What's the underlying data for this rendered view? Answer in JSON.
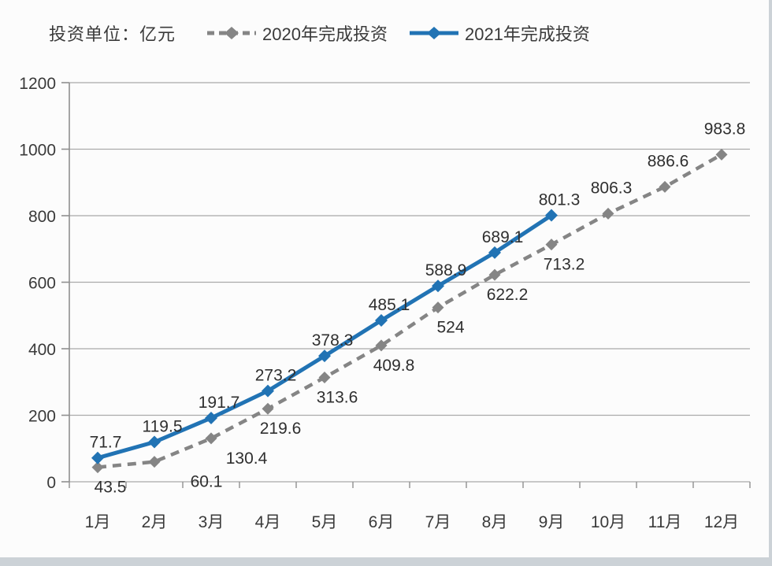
{
  "page": {
    "unit_label": "投资单位：亿元"
  },
  "chart_data": {
    "type": "line",
    "title": "",
    "unit_label": "投资单位：亿元",
    "xlabel": "",
    "ylabel": "亿元",
    "categories": [
      "1月",
      "2月",
      "3月",
      "4月",
      "5月",
      "6月",
      "7月",
      "8月",
      "9月",
      "10月",
      "11月",
      "12月"
    ],
    "series": [
      {
        "name": "2020年完成投资",
        "color": "#858585",
        "line_style": "dashed",
        "marker": "diamond",
        "values": [
          43.5,
          60.1,
          130.4,
          219.6,
          313.6,
          409.8,
          524,
          622.2,
          713.2,
          806.3,
          886.6,
          983.8
        ],
        "labels": [
          "43.5",
          "60.1",
          "130.4",
          "219.6",
          "313.6",
          "409.8",
          "524",
          "622.2",
          "713.2",
          "806.3",
          "886.6",
          "983.8"
        ],
        "label_side": [
          "below",
          "below",
          "below",
          "below",
          "below",
          "below",
          "below",
          "below",
          "below",
          "above",
          "above",
          "above"
        ]
      },
      {
        "name": "2021年完成投资",
        "color": "#2173b4",
        "line_style": "solid",
        "marker": "diamond",
        "values": [
          71.7,
          119.5,
          191.7,
          273.2,
          378.3,
          485.1,
          588.9,
          689.1,
          801.3,
          null,
          null,
          null
        ],
        "labels": [
          "71.7",
          "119.5",
          "191.7",
          "273.2",
          "378.3",
          "485.1",
          "588.9",
          "689.1",
          "801.3",
          "",
          "",
          ""
        ],
        "label_side": [
          "above",
          "above",
          "above",
          "above",
          "above",
          "above",
          "above",
          "above",
          "above",
          "above",
          "above",
          "above"
        ]
      }
    ],
    "ylim": [
      0,
      1200
    ],
    "yticks": [
      0,
      200,
      400,
      600,
      800,
      1000,
      1200
    ],
    "grid": "horizontal",
    "legend_position": "top",
    "colors": {
      "grid": "#a9a9a9",
      "axis": "#8f8f8f",
      "text": "#3a3a3a"
    }
  }
}
